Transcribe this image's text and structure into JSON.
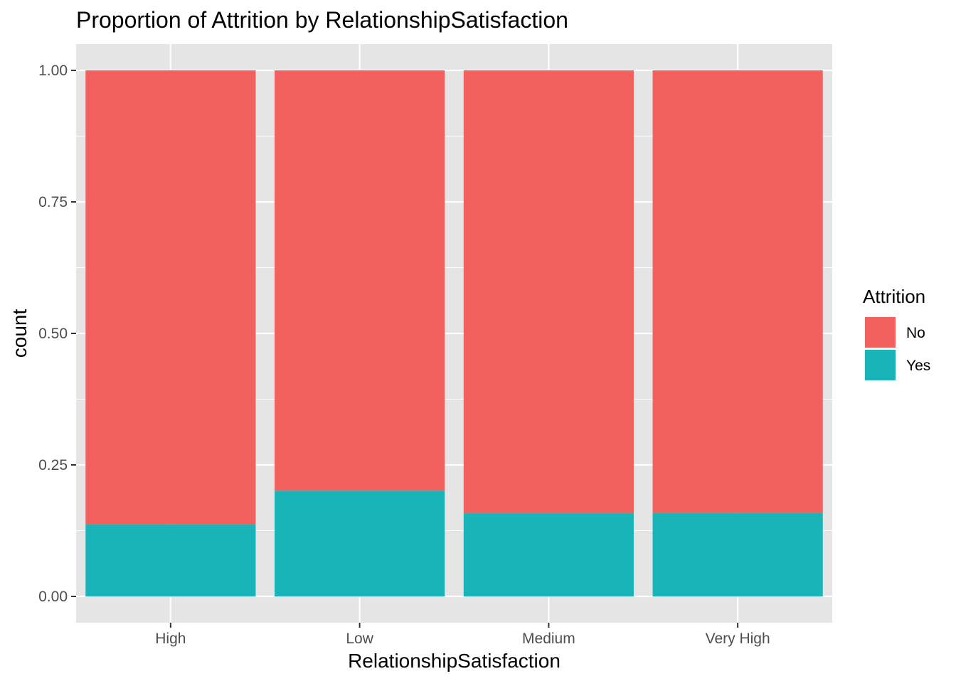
{
  "chart_data": {
    "type": "bar",
    "stacked": true,
    "title": "Proportion of Attrition by  RelationshipSatisfaction",
    "xlabel": "RelationshipSatisfaction",
    "ylabel": "count",
    "categories": [
      "High",
      "Low",
      "Medium",
      "Very High"
    ],
    "ylim": [
      -0.05,
      1.05
    ],
    "yticks": [
      "0.00",
      "0.25",
      "0.50",
      "0.75",
      "1.00"
    ],
    "grid": true,
    "legend": {
      "title": "Attrition",
      "position": "right",
      "items": [
        "No",
        "Yes"
      ]
    },
    "series": [
      {
        "name": "Yes",
        "values": [
          0.137,
          0.201,
          0.158,
          0.159
        ],
        "color": "#19B4B8"
      },
      {
        "name": "No",
        "values": [
          0.863,
          0.799,
          0.842,
          0.841
        ],
        "color": "#F2615D"
      }
    ],
    "colors": {
      "panel_background": "#E5E5E5",
      "grid_major": "#FFFFFF",
      "tick_text": "#4D4D4D",
      "tick_mark": "#333333"
    }
  }
}
